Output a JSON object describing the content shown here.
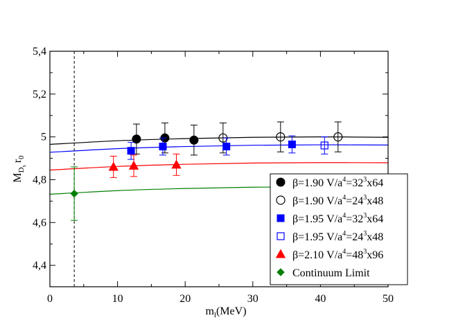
{
  "chart_data": {
    "type": "scatter",
    "title": "",
    "xlabel": "m",
    "xlabel_sub": "l",
    "xlabel_tail": "(MeV)",
    "ylabel": "M",
    "ylabel_sub": "D",
    "ylabel_subsub": "s",
    "ylabel_tail": "r",
    "ylabel_tail_sub": "0",
    "xlim": [
      0,
      50
    ],
    "ylim": [
      4.3,
      5.4
    ],
    "xticks": [
      0,
      10,
      20,
      30,
      40,
      50
    ],
    "xtick_labels": [
      "0",
      "10",
      "20",
      "30",
      "40",
      "50"
    ],
    "yticks": [
      4.4,
      4.6,
      4.8,
      5.0,
      5.2,
      5.4
    ],
    "ytick_labels": [
      "4,4",
      "4,6",
      "4,8",
      "5",
      "5,2",
      "5,4"
    ],
    "vertical_line_x": 3.6,
    "legend_position": "lower-right",
    "series": [
      {
        "name": "β=1.90 V/a4=323x64",
        "label_parts": [
          "β=1.90 V/a",
          "4",
          "=32",
          "3",
          "x64"
        ],
        "color": "#000000",
        "marker": "circle",
        "filled": true,
        "points": [
          {
            "x": 12.8,
            "y": 4.99,
            "err": 0.07
          },
          {
            "x": 17.0,
            "y": 4.995,
            "err": 0.07
          },
          {
            "x": 21.3,
            "y": 4.985,
            "err": 0.07
          }
        ]
      },
      {
        "name": "β=1.90 V/a4=243x48",
        "label_parts": [
          "β=1.90 V/a",
          "4",
          "=24",
          "3",
          "x48"
        ],
        "color": "#000000",
        "marker": "circle",
        "filled": false,
        "points": [
          {
            "x": 25.6,
            "y": 4.995,
            "err": 0.07
          },
          {
            "x": 34.1,
            "y": 5.0,
            "err": 0.07
          },
          {
            "x": 42.6,
            "y": 5.0,
            "err": 0.07
          }
        ]
      },
      {
        "name": "β=1.95 V/a4=323x64",
        "label_parts": [
          "β=1.95 V/a",
          "4",
          "=32",
          "3",
          "x64"
        ],
        "color": "#0000ff",
        "marker": "square",
        "filled": true,
        "points": [
          {
            "x": 12.0,
            "y": 4.935,
            "err": 0.04
          },
          {
            "x": 16.7,
            "y": 4.955,
            "err": 0.04
          },
          {
            "x": 26.1,
            "y": 4.955,
            "err": 0.04
          },
          {
            "x": 35.8,
            "y": 4.965,
            "err": 0.04
          }
        ]
      },
      {
        "name": "β=1.95 V/a4=243x48",
        "label_parts": [
          "β=1.95 V/a",
          "4",
          "=24",
          "3",
          "x48"
        ],
        "color": "#0000ff",
        "marker": "square",
        "filled": false,
        "points": [
          {
            "x": 40.6,
            "y": 4.96,
            "err": 0.04
          }
        ]
      },
      {
        "name": "β=2.10 V/a4=483x96",
        "label_parts": [
          "β=2.10 V/a",
          "4",
          "=48",
          "3",
          "x96"
        ],
        "color": "#ff0000",
        "marker": "triangle",
        "filled": true,
        "points": [
          {
            "x": 9.4,
            "y": 4.86,
            "err": 0.05
          },
          {
            "x": 12.4,
            "y": 4.865,
            "err": 0.05
          },
          {
            "x": 18.7,
            "y": 4.87,
            "err": 0.05
          }
        ]
      },
      {
        "name": "Continuum Limit",
        "label_parts": [
          "Continuum Limit"
        ],
        "color": "#008000",
        "marker": "diamond",
        "filled": true,
        "points": [
          {
            "x": 3.6,
            "y": 4.735,
            "err": 0.125
          }
        ]
      }
    ],
    "fit_curves": [
      {
        "color": "#000000",
        "x": [
          0,
          10,
          20,
          30,
          40,
          50
        ],
        "y": [
          4.965,
          4.982,
          4.992,
          4.998,
          5.0,
          4.998
        ]
      },
      {
        "color": "#0000ff",
        "x": [
          0,
          10,
          20,
          30,
          40,
          50
        ],
        "y": [
          4.928,
          4.945,
          4.955,
          4.961,
          4.963,
          4.962
        ]
      },
      {
        "color": "#ff0000",
        "x": [
          0,
          10,
          20,
          30,
          40,
          50
        ],
        "y": [
          4.845,
          4.862,
          4.872,
          4.878,
          4.88,
          4.879
        ]
      },
      {
        "color": "#008000",
        "x": [
          0,
          10,
          20,
          30,
          40,
          50
        ],
        "y": [
          4.732,
          4.749,
          4.759,
          4.765,
          4.767,
          4.766
        ]
      }
    ]
  }
}
